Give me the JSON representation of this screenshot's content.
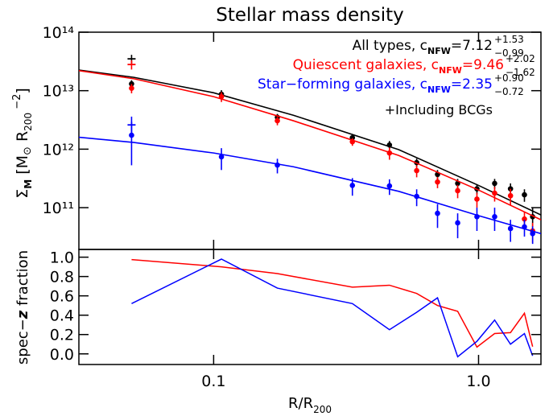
{
  "chart_data": [
    {
      "type": "scatter",
      "title": "Stellar mass density",
      "ylabel": [
        "Σ",
        "M",
        " [M",
        "⊙",
        " R",
        "200",
        " −2",
        "]"
      ],
      "xlog": true,
      "ylog": true,
      "xlim": [
        0.031,
        1.72
      ],
      "ylim": [
        19300000000.0,
        100000000000000.0
      ],
      "xticks": [
        0.1,
        {
          "value": 1,
          "label": "1.0"
        }
      ],
      "yticks": [
        {
          "value": 100000000000.0,
          "label": "10¹¹"
        },
        {
          "value": 1000000000000.0,
          "label": "10¹²"
        },
        {
          "value": 10000000000000.0,
          "label": "10¹³"
        },
        {
          "value": 100000000000000.0,
          "label": "10¹⁴"
        }
      ],
      "x": [
        0.049,
        0.107,
        0.174,
        0.334,
        0.461,
        0.584,
        0.7,
        0.834,
        0.986,
        1.15,
        1.32,
        1.49,
        1.6
      ],
      "series": [
        {
          "name": "All types, c",
          "name_sub": "NFW",
          "param": "=7.12",
          "param_plus": "+1.53",
          "param_minus": "−0.99",
          "color": "#000000",
          "values": [
            13100000000000.0,
            8700000000000.0,
            3500000000000.0,
            1570000000000.0,
            1180000000000.0,
            590000000000.0,
            370000000000.0,
            260000000000.0,
            210000000000.0,
            260000000000.0,
            210000000000.0,
            166000000000.0,
            70000000000.0
          ],
          "errors": [
            2000000000000.0,
            1500000000000.0,
            500000000000.0,
            200000000000.0,
            200000000000.0,
            100000000000.0,
            70000000000.0,
            50000000000.0,
            40000000000.0,
            50000000000.0,
            50000000000.0,
            40000000000.0,
            30000000000.0
          ],
          "fit": {
            "x": [
              0.031,
              0.05,
              0.1,
              0.2,
              0.5,
              1.0,
              1.72
            ],
            "values": [
              22500000000000.0,
              16900000000000.0,
              9200000000000.0,
              3800000000000.0,
              980000000000.0,
              240000000000.0,
              75000000000.0
            ]
          }
        },
        {
          "name": "Quiescent galaxies, c",
          "name_sub": "NFW",
          "param": "=9.46",
          "param_plus": "+2.02",
          "param_minus": "−1.62",
          "color": "#ff0000",
          "values": [
            11000000000000.0,
            7900000000000.0,
            3060000000000.0,
            1340000000000.0,
            860000000000.0,
            430000000000.0,
            275000000000.0,
            195000000000.0,
            140000000000.0,
            177000000000.0,
            160000000000.0,
            64000000000.0,
            40000000000.0
          ],
          "errors": [
            2000000000000.0,
            1500000000000.0,
            500000000000.0,
            200000000000.0,
            200000000000.0,
            100000000000.0,
            60000000000.0,
            50000000000.0,
            40000000000.0,
            50000000000.0,
            50000000000.0,
            20000000000.0,
            15000000000.0
          ],
          "fit": {
            "x": [
              0.031,
              0.05,
              0.1,
              0.2,
              0.5,
              1.0,
              1.72
            ],
            "values": [
              22000000000000.0,
              16000000000000.0,
              7900000000000.0,
              3060000000000.0,
              780000000000.0,
              200000000000.0,
              62000000000.0
            ]
          }
        },
        {
          "name": "Star−forming galaxies, c",
          "name_sub": "NFW",
          "param": "=2.35",
          "param_plus": "+0.90",
          "param_minus": "−0.72",
          "color": "#0000ff",
          "values": [
            1730000000000.0,
            740000000000.0,
            535000000000.0,
            240000000000.0,
            235000000000.0,
            156000000000.0,
            80000000000.0,
            55000000000.0,
            70000000000.0,
            70000000000.0,
            44000000000.0,
            47000000000.0,
            36000000000.0
          ],
          "errors": [
            1200000000000.0,
            300000000000.0,
            150000000000.0,
            80000000000.0,
            70000000000.0,
            50000000000.0,
            35000000000.0,
            25000000000.0,
            30000000000.0,
            30000000000.0,
            18000000000.0,
            15000000000.0,
            12000000000.0
          ],
          "fit": {
            "x": [
              0.031,
              0.05,
              0.1,
              0.2,
              0.5,
              1.0,
              1.72
            ],
            "values": [
              1600000000000.0,
              1300000000000.0,
              860000000000.0,
              500000000000.0,
              190000000000.0,
              73000000000.0,
              36000000000.0
            ]
          }
        }
      ],
      "bcg": {
        "label": "+Including BCGs",
        "x": 0.049,
        "values": [
          35000000000000.0,
          28000000000000.0,
          2600000000000.0
        ],
        "errors": [
          6000000000000.0,
          5000000000000.0,
          1000000000000.0
        ]
      }
    },
    {
      "type": "line",
      "xlabel": [
        "R/R",
        "200"
      ],
      "ylabel": [
        "spec−",
        "z",
        " fraction"
      ],
      "xlog": true,
      "xlim": [
        0.031,
        1.72
      ],
      "ylim": [
        -0.11,
        1.08
      ],
      "xticks": [
        0.1,
        {
          "value": 1,
          "label": "1.0"
        }
      ],
      "yticks": [
        {
          "value": 0,
          "label": "0.0"
        },
        0.2,
        0.4,
        0.6,
        0.8,
        {
          "value": 1,
          "label": "1.0"
        }
      ],
      "x": [
        0.049,
        0.107,
        0.174,
        0.334,
        0.461,
        0.584,
        0.7,
        0.834,
        0.986,
        1.15,
        1.32,
        1.49,
        1.6
      ],
      "series": [
        {
          "color": "#ff0000",
          "values": [
            0.975,
            0.9,
            0.83,
            0.69,
            0.71,
            0.625,
            0.5,
            0.44,
            0.07,
            0.21,
            0.22,
            0.42,
            0.075
          ]
        },
        {
          "color": "#0000ff",
          "values": [
            0.52,
            0.98,
            0.68,
            0.52,
            0.25,
            0.43,
            0.58,
            -0.03,
            0.13,
            0.35,
            0.1,
            0.21,
            -0.02
          ]
        }
      ]
    }
  ]
}
